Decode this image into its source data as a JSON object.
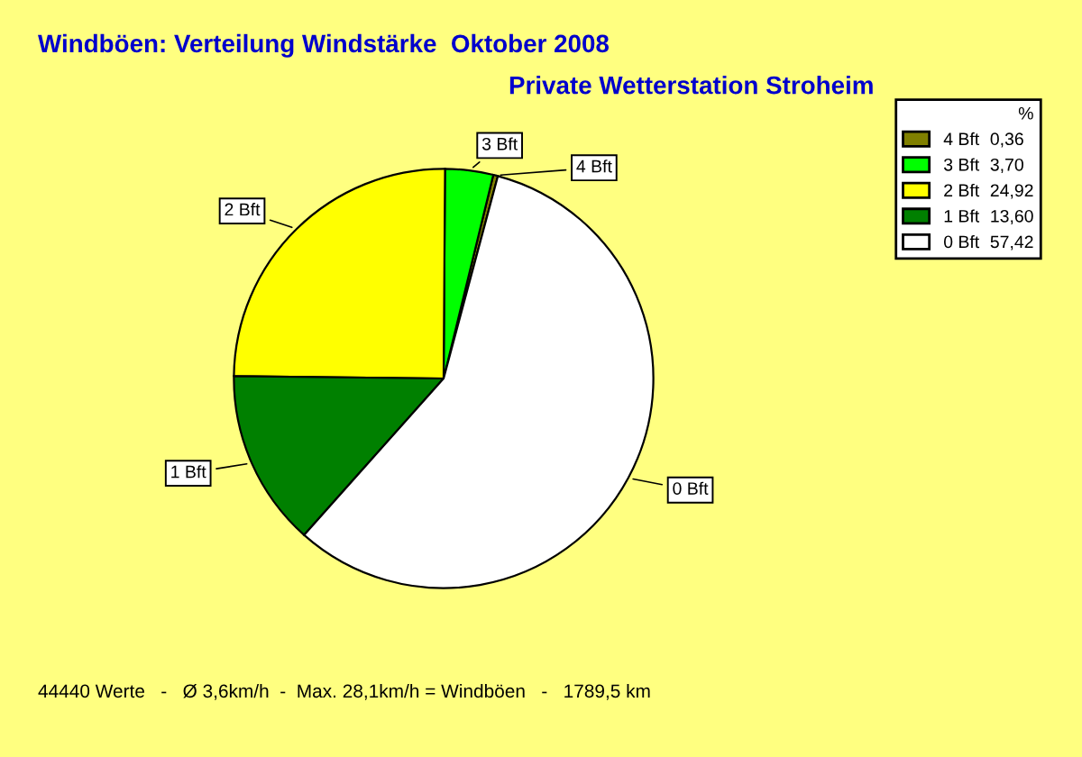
{
  "chart_data": {
    "type": "pie",
    "title": "Windböen: Verteilung Windstärke  Oktober 2008",
    "subtitle": "Private Wetterstation Stroheim",
    "categories": [
      "4 Bft",
      "3 Bft",
      "2 Bft",
      "1 Bft",
      "0 Bft"
    ],
    "values": [
      0.36,
      3.7,
      24.92,
      13.6,
      57.42
    ],
    "value_labels": [
      "0,36",
      "3,70",
      "24,92",
      "13,60",
      "57,42"
    ],
    "colors": [
      "#808000",
      "#00ff00",
      "#ffff00",
      "#008000",
      "#ffffff"
    ],
    "legend": "top right",
    "legend_title": "%",
    "annotations": [
      "44440 Werte   -   Ø 3,6km/h  -  Max. 28,1km/h = Windböen   -   1789,5 km"
    ]
  }
}
